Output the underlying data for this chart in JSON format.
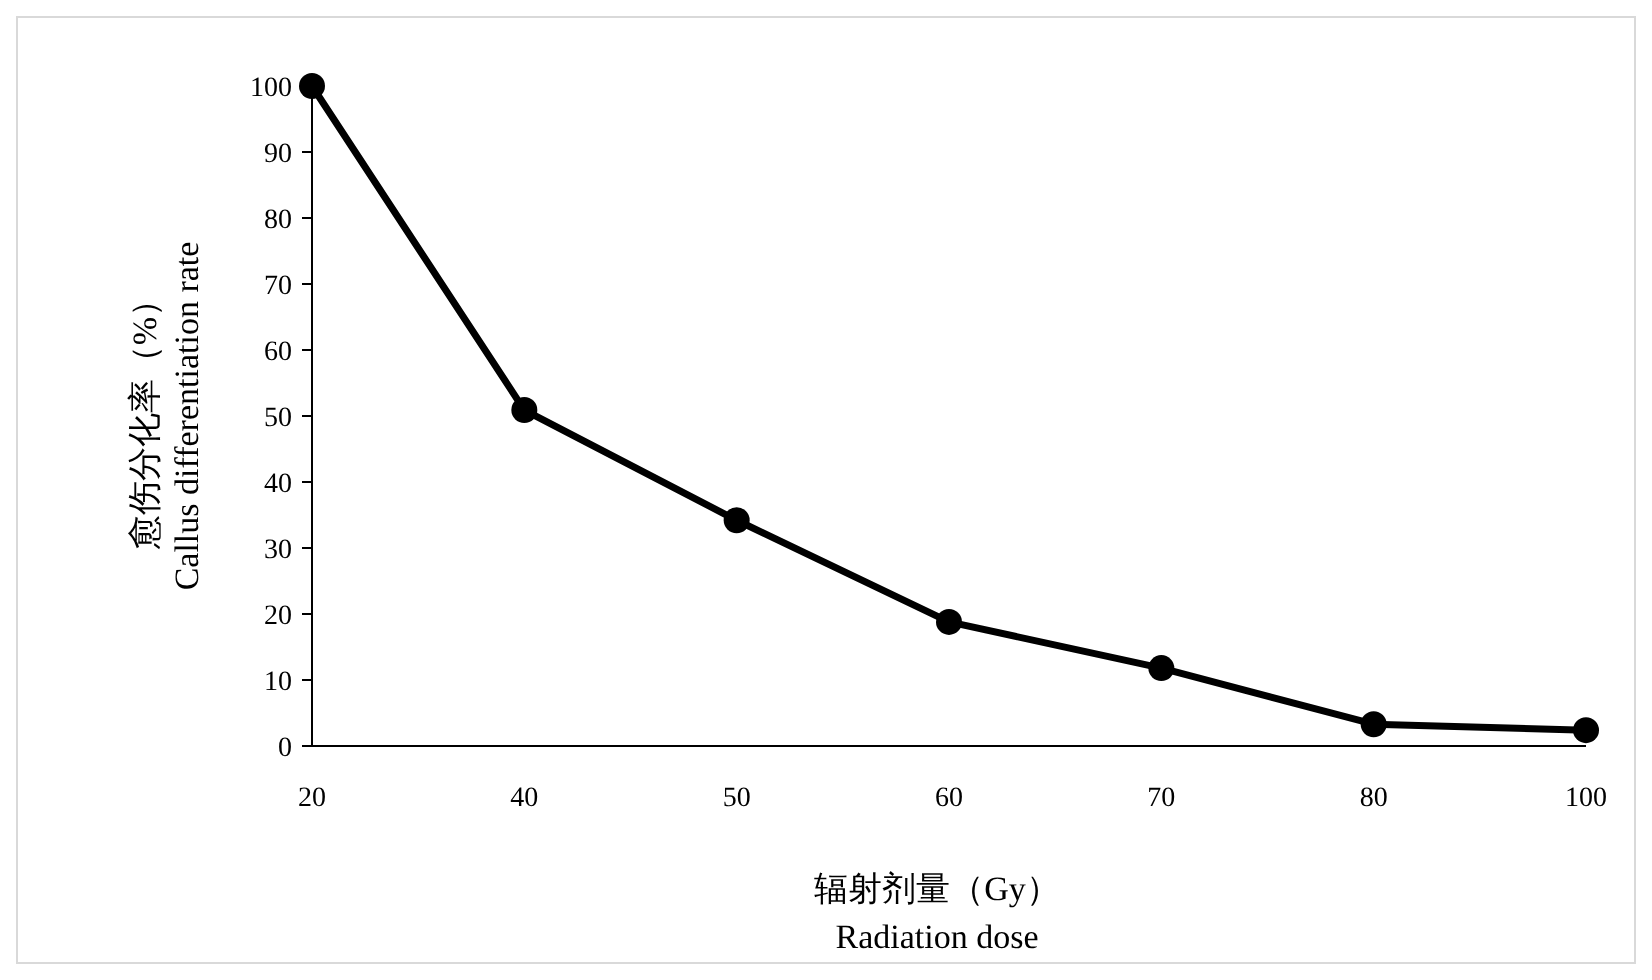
{
  "chart_data": {
    "type": "line",
    "categories": [
      "20",
      "40",
      "50",
      "60",
      "70",
      "80",
      "100"
    ],
    "series": [
      {
        "color": "#000000",
        "values": [
          100,
          50.9,
          34.2,
          18.8,
          11.8,
          3.3,
          2.4
        ]
      }
    ],
    "ylim": [
      0,
      100
    ],
    "yticks": [
      0,
      10,
      20,
      30,
      40,
      50,
      60,
      70,
      80,
      90,
      100
    ],
    "ylabel": "愈伤分化率（%）\nCallus differentiation rate",
    "xlabel": "辐射剂量（Gy）\nRadiation dose",
    "marker": "circle",
    "line_style": "solid"
  }
}
